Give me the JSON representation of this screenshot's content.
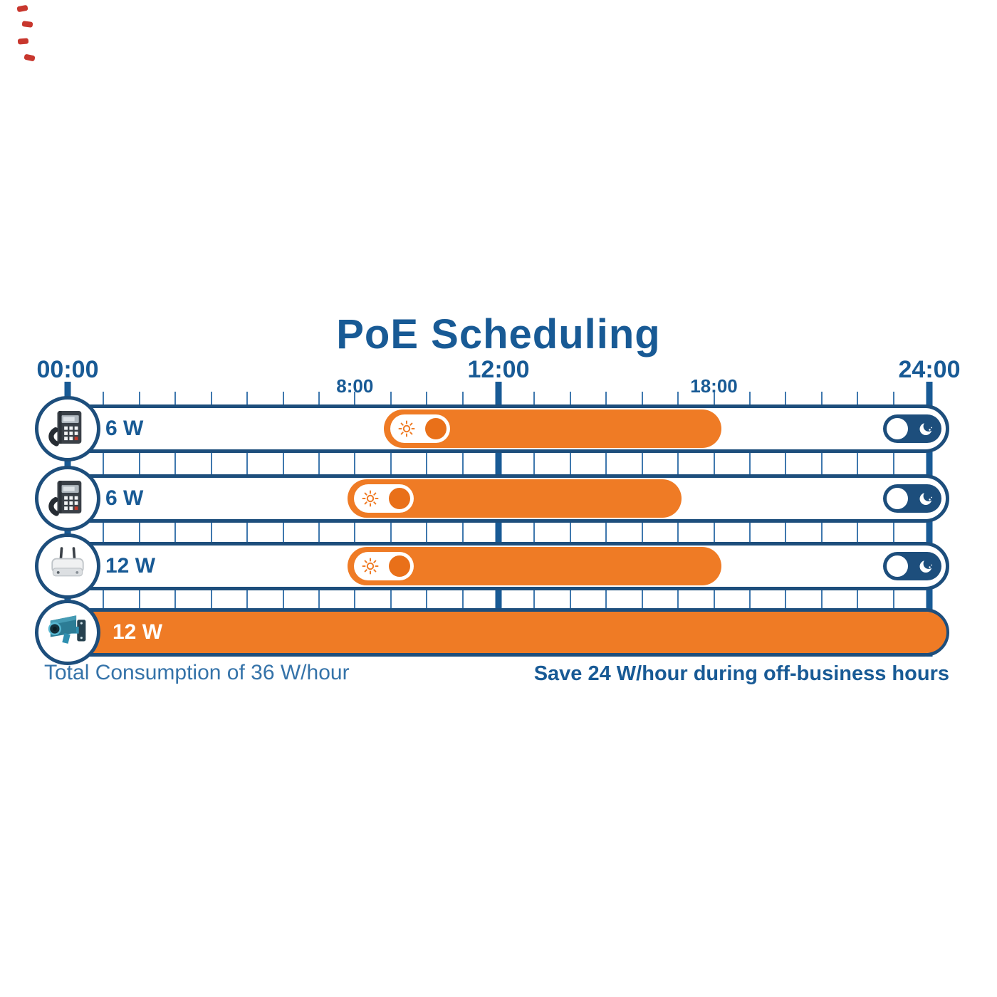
{
  "title": "PoE Scheduling",
  "colors": {
    "primary_blue": "#185A95",
    "deep_blue": "#1D4E7C",
    "grid_blue": "#3F78AE",
    "accent_orange": "#EF7B25",
    "corner_mark_red": "#C8372E"
  },
  "timeline": {
    "hours_total": 24,
    "labels": [
      {
        "text": "00:00",
        "hour": 0,
        "size": "major"
      },
      {
        "text": "8:00",
        "hour": 8,
        "size": "minor"
      },
      {
        "text": "12:00",
        "hour": 12,
        "size": "major"
      },
      {
        "text": "18:00",
        "hour": 18,
        "size": "minor"
      },
      {
        "text": "24:00",
        "hour": 24,
        "size": "major"
      }
    ],
    "major_line_hours": [
      0,
      12,
      24
    ]
  },
  "rows": [
    {
      "device": "ip-desk-phone",
      "icon": "desk-phone-icon",
      "power_label": "6 W",
      "bar_start_hour": 8.8,
      "bar_end_hour": 18.2,
      "full_day": false,
      "has_day_toggle": true,
      "has_night_toggle": true
    },
    {
      "device": "ip-desk-phone",
      "icon": "desk-phone-icon",
      "power_label": "6 W",
      "bar_start_hour": 7.8,
      "bar_end_hour": 17.1,
      "full_day": false,
      "has_day_toggle": true,
      "has_night_toggle": true
    },
    {
      "device": "wireless-access-point",
      "icon": "access-point-icon",
      "power_label": "12 W",
      "bar_start_hour": 7.8,
      "bar_end_hour": 18.2,
      "full_day": false,
      "has_day_toggle": true,
      "has_night_toggle": true
    },
    {
      "device": "cctv-camera",
      "icon": "cctv-camera-icon",
      "power_label": "12 W",
      "bar_start_hour": 0,
      "bar_end_hour": 24,
      "full_day": true,
      "has_day_toggle": false,
      "has_night_toggle": false
    }
  ],
  "footer": {
    "left_note": "Total Consumption of 36 W/hour",
    "right_note": "Save 24 W/hour during off-business hours"
  }
}
